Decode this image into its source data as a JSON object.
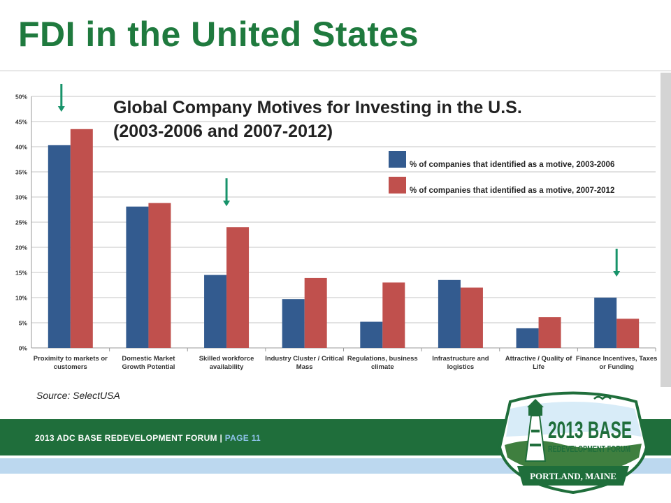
{
  "slide": {
    "title": "FDI in the United States",
    "source": "Source: SelectUSA"
  },
  "footer": {
    "event": "2013 ADC BASE REDEVELOPMENT FORUM | ",
    "page": "PAGE 11"
  },
  "logo": {
    "line1": "2013 BASE",
    "line2": "REDEVELOPMENT FORUM",
    "banner": "PORTLAND, MAINE"
  },
  "colors": {
    "title_green": "#1f7a3e",
    "footer_green": "#1f6e3b",
    "series_blue": "#335b8f",
    "series_red": "#c0504d",
    "arrow_teal": "#17936a"
  },
  "chart_data": {
    "type": "bar",
    "title_line1": "Global Company Motives for Investing in the U.S.",
    "title_line2": "(2003-2006 and 2007-2012)",
    "categories": [
      [
        "Proximity to markets or",
        "customers"
      ],
      [
        "Domestic Market",
        "Growth Potential"
      ],
      [
        "Skilled workforce",
        "availability"
      ],
      [
        "Industry Cluster / Critical",
        "Mass"
      ],
      [
        "Regulations, business",
        "climate"
      ],
      [
        "Infrastructure and",
        "logistics"
      ],
      [
        "Attractive / Quality of",
        "Life"
      ],
      [
        "Finance Incentives, Taxes",
        "or Funding"
      ]
    ],
    "series": [
      {
        "name": "% of companies that identified as a motive, 2003-2006",
        "color": "#335b8f",
        "values": [
          40.3,
          28.1,
          14.5,
          9.7,
          5.2,
          13.5,
          3.9,
          10.0
        ]
      },
      {
        "name": "% of companies that identified as a motive, 2007-2012",
        "color": "#c0504d",
        "values": [
          43.5,
          28.8,
          24.0,
          13.9,
          13.0,
          12.0,
          6.1,
          5.8
        ]
      }
    ],
    "yticks": [
      "0%",
      "5%",
      "10%",
      "15%",
      "20%",
      "25%",
      "30%",
      "35%",
      "40%",
      "45%",
      "50%"
    ],
    "ylim": [
      0,
      50
    ],
    "grid": true,
    "legend_position": "top-right",
    "highlighted_categories": [
      0,
      2,
      7
    ]
  }
}
